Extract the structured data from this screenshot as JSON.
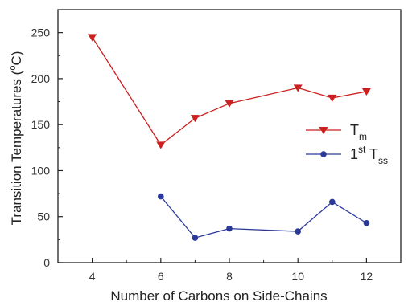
{
  "chart_data": {
    "type": "line",
    "title": "",
    "xlabel": "Number of Carbons on Side-Chains",
    "ylabel": "Transition Temperatures (°C)",
    "ylabel_parts": {
      "before": "Transition Temperatures (",
      "sup": "o",
      "after": "C)"
    },
    "xlim": [
      3,
      13
    ],
    "ylim": [
      0,
      275
    ],
    "xticks": [
      4,
      6,
      8,
      10,
      12
    ],
    "yticks": [
      0,
      50,
      100,
      150,
      200,
      250
    ],
    "grid": false,
    "legend_position": "right",
    "series": [
      {
        "name": "Tm",
        "label_main": "T",
        "label_sup": "",
        "label_sub": "m",
        "marker": "triangle-down",
        "color": "#cc1f1f",
        "x": [
          4,
          6,
          7,
          8,
          10,
          11,
          12
        ],
        "y": [
          245,
          128,
          157,
          173,
          190,
          179,
          186
        ]
      },
      {
        "name": "1st Tss",
        "label_main": "1",
        "label_sup": "st",
        "label_main2": " T",
        "label_sub": "ss",
        "marker": "circle",
        "color": "#2b3a9a",
        "x": [
          6,
          7,
          8,
          10,
          11,
          12
        ],
        "y": [
          72,
          27,
          37,
          34,
          66,
          43
        ]
      }
    ]
  }
}
